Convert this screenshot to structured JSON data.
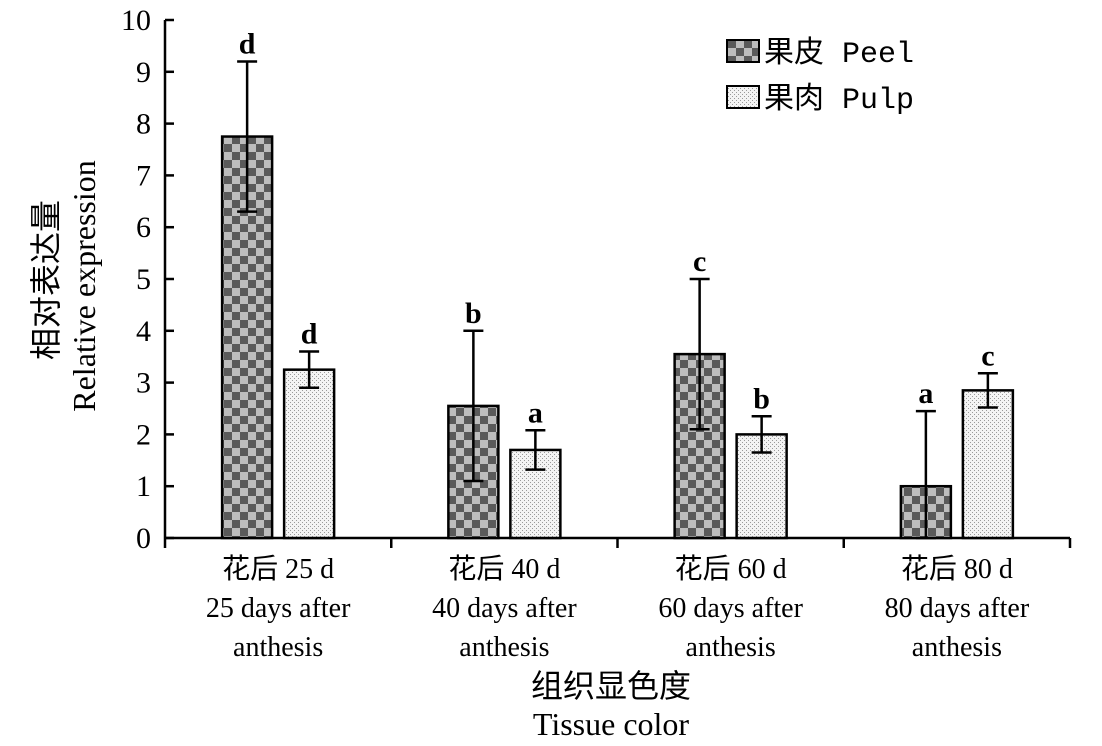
{
  "chart_data": {
    "type": "bar",
    "categories": [
      [
        "花后 25 d",
        "25 days after",
        "anthesis"
      ],
      [
        "花后 40 d",
        "40 days after",
        "anthesis"
      ],
      [
        "花后 60 d",
        "60 days after",
        "anthesis"
      ],
      [
        "花后 80 d",
        "80 days after",
        "anthesis"
      ]
    ],
    "series": [
      {
        "name": "果皮 Peel",
        "values": [
          7.75,
          2.55,
          3.55,
          1.0
        ],
        "error": [
          1.45,
          1.45,
          1.45,
          1.45
        ],
        "significance": [
          "d",
          "b",
          "c",
          "a"
        ],
        "pattern": "checker"
      },
      {
        "name": "果肉 Pulp",
        "values": [
          3.25,
          1.7,
          2.0,
          2.85
        ],
        "error": [
          0.35,
          0.38,
          0.35,
          0.33
        ],
        "significance": [
          "d",
          "a",
          "b",
          "c"
        ],
        "pattern": "dots"
      }
    ],
    "ylim": [
      0,
      10
    ],
    "yticks": [
      "0",
      "1",
      "2",
      "3",
      "4",
      "5",
      "6",
      "7",
      "8",
      "9",
      "10"
    ],
    "ylabel": [
      "相对表达量",
      "Relative expression"
    ],
    "xlabel": [
      "组织显色度",
      "Tissue color"
    ],
    "legend_position": "top-right",
    "grid": false
  }
}
